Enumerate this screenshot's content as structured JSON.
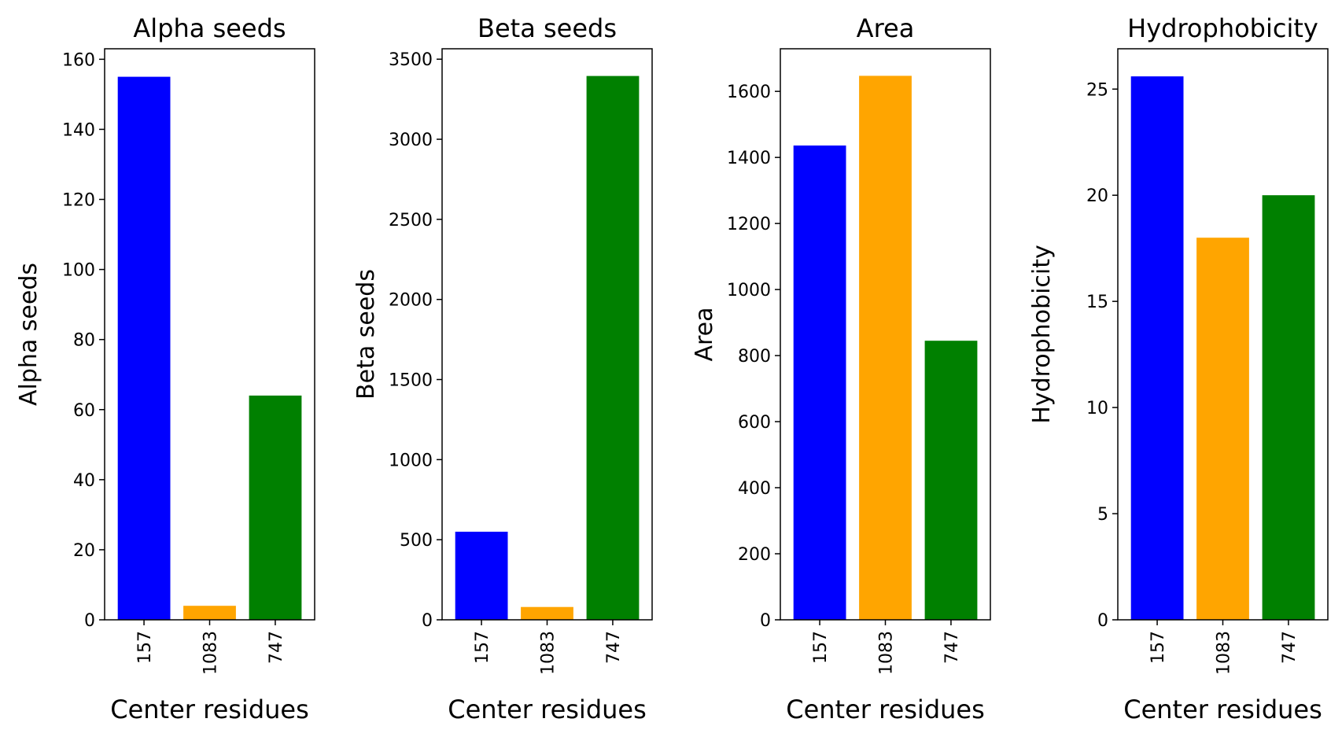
{
  "chart_data": [
    {
      "type": "bar",
      "title": "Alpha seeds",
      "xlabel": "Center residues",
      "ylabel": "Alpha seeds",
      "categories": [
        "157",
        "1083",
        "747"
      ],
      "values": [
        155,
        4,
        64
      ],
      "colors": [
        "#0000ff",
        "#ffa500",
        "#008000"
      ],
      "ylim": [
        0,
        163
      ],
      "yticks": [
        0,
        20,
        40,
        60,
        80,
        100,
        120,
        140,
        160
      ],
      "grid": false,
      "legend": "none"
    },
    {
      "type": "bar",
      "title": "Beta seeds",
      "xlabel": "Center residues",
      "ylabel": "Beta seeds",
      "categories": [
        "157",
        "1083",
        "747"
      ],
      "values": [
        550,
        80,
        3395
      ],
      "colors": [
        "#0000ff",
        "#ffa500",
        "#008000"
      ],
      "ylim": [
        0,
        3565
      ],
      "yticks": [
        0,
        500,
        1000,
        1500,
        2000,
        2500,
        3000,
        3500
      ],
      "grid": false,
      "legend": "none"
    },
    {
      "type": "bar",
      "title": "Area",
      "xlabel": "Center residues",
      "ylabel": "Area",
      "categories": [
        "157",
        "1083",
        "747"
      ],
      "values": [
        1436,
        1647,
        845
      ],
      "colors": [
        "#0000ff",
        "#ffa500",
        "#008000"
      ],
      "ylim": [
        0,
        1729
      ],
      "yticks": [
        0,
        200,
        400,
        600,
        800,
        1000,
        1200,
        1400,
        1600
      ],
      "grid": false,
      "legend": "none"
    },
    {
      "type": "bar",
      "title": "Hydrophobicity",
      "xlabel": "Center residues",
      "ylabel": "Hydrophobicity",
      "categories": [
        "157",
        "1083",
        "747"
      ],
      "values": [
        25.6,
        18.0,
        20.0
      ],
      "colors": [
        "#0000ff",
        "#ffa500",
        "#008000"
      ],
      "ylim": [
        0,
        26.9
      ],
      "yticks": [
        0,
        5,
        10,
        15,
        20,
        25
      ],
      "grid": false,
      "legend": "none"
    }
  ]
}
